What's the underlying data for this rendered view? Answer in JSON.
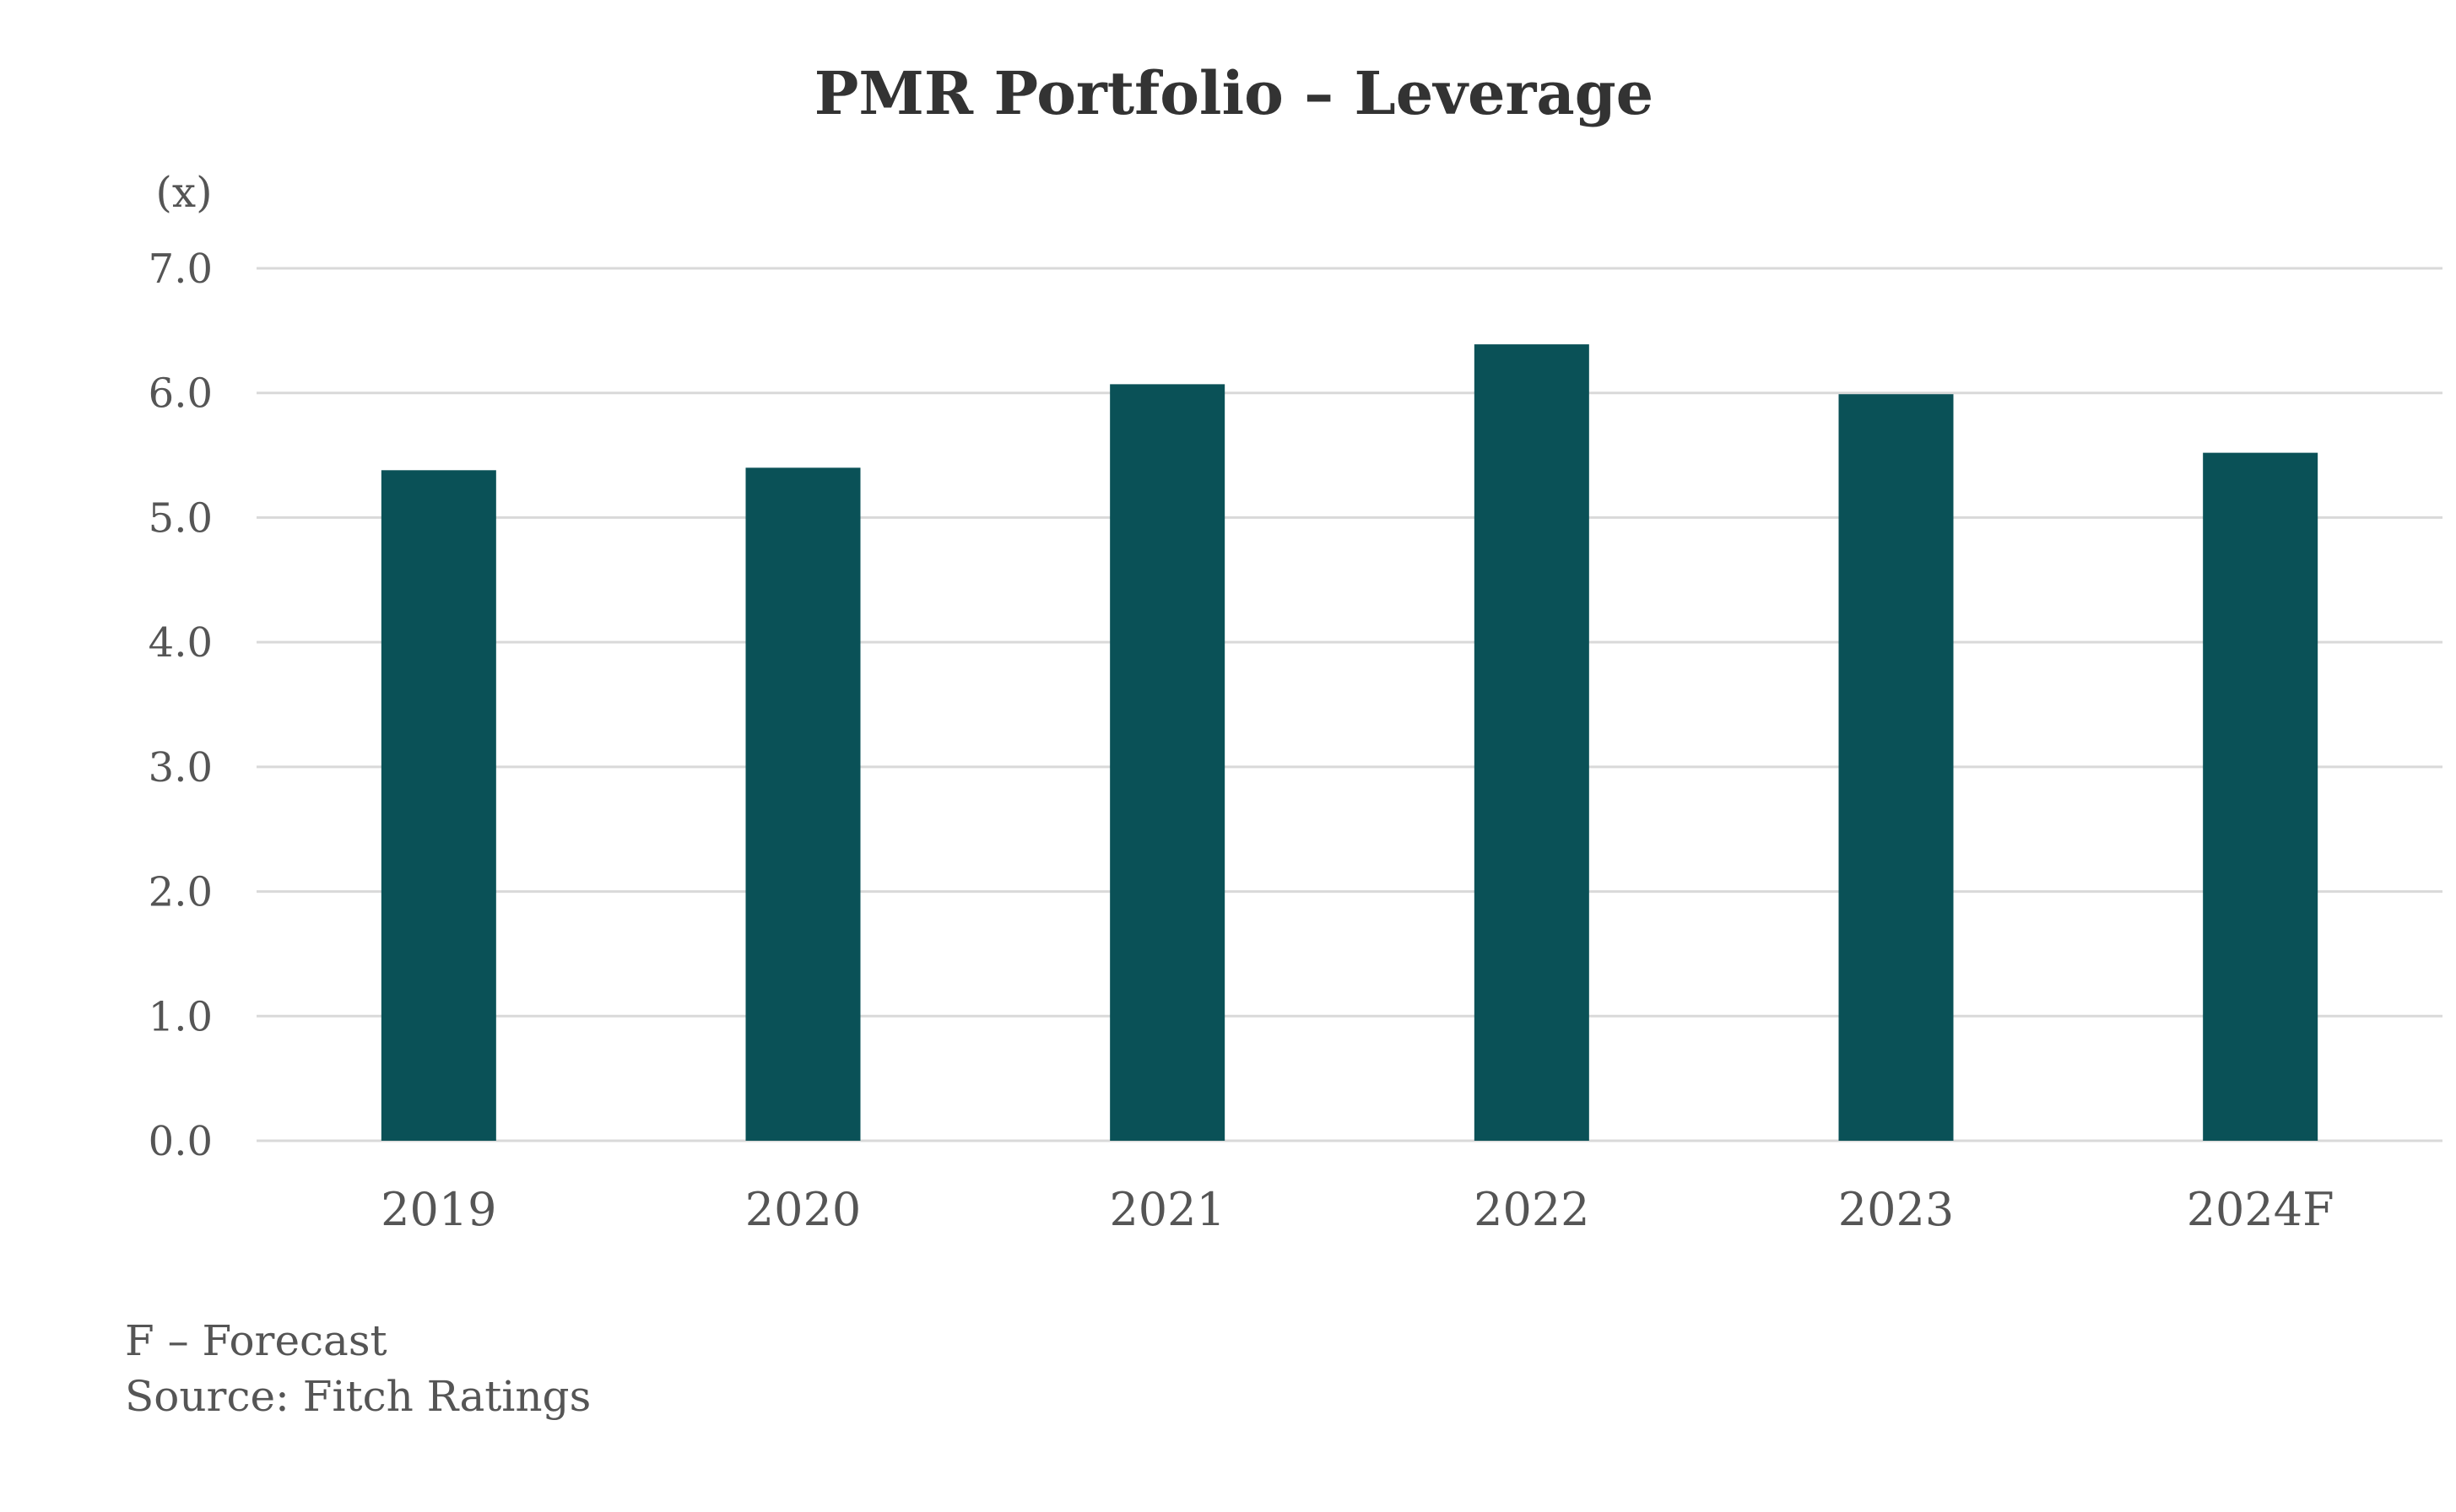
{
  "chart_data": {
    "type": "bar",
    "title": "PMR Portfolio – Leverage",
    "ylabel": "(x)",
    "xlabel": "",
    "categories": [
      "2019",
      "2020",
      "2021",
      "2022",
      "2023",
      "2024F"
    ],
    "values": [
      5.38,
      5.4,
      6.07,
      6.39,
      5.99,
      5.52
    ],
    "ylim": [
      0,
      7
    ],
    "yticks": [
      "0.0",
      "1.0",
      "2.0",
      "3.0",
      "4.0",
      "5.0",
      "6.0",
      "7.0"
    ],
    "grid": true,
    "bar_color": "#0a5157",
    "notes": [
      "F – Forecast",
      "Source: Fitch Ratings"
    ]
  }
}
